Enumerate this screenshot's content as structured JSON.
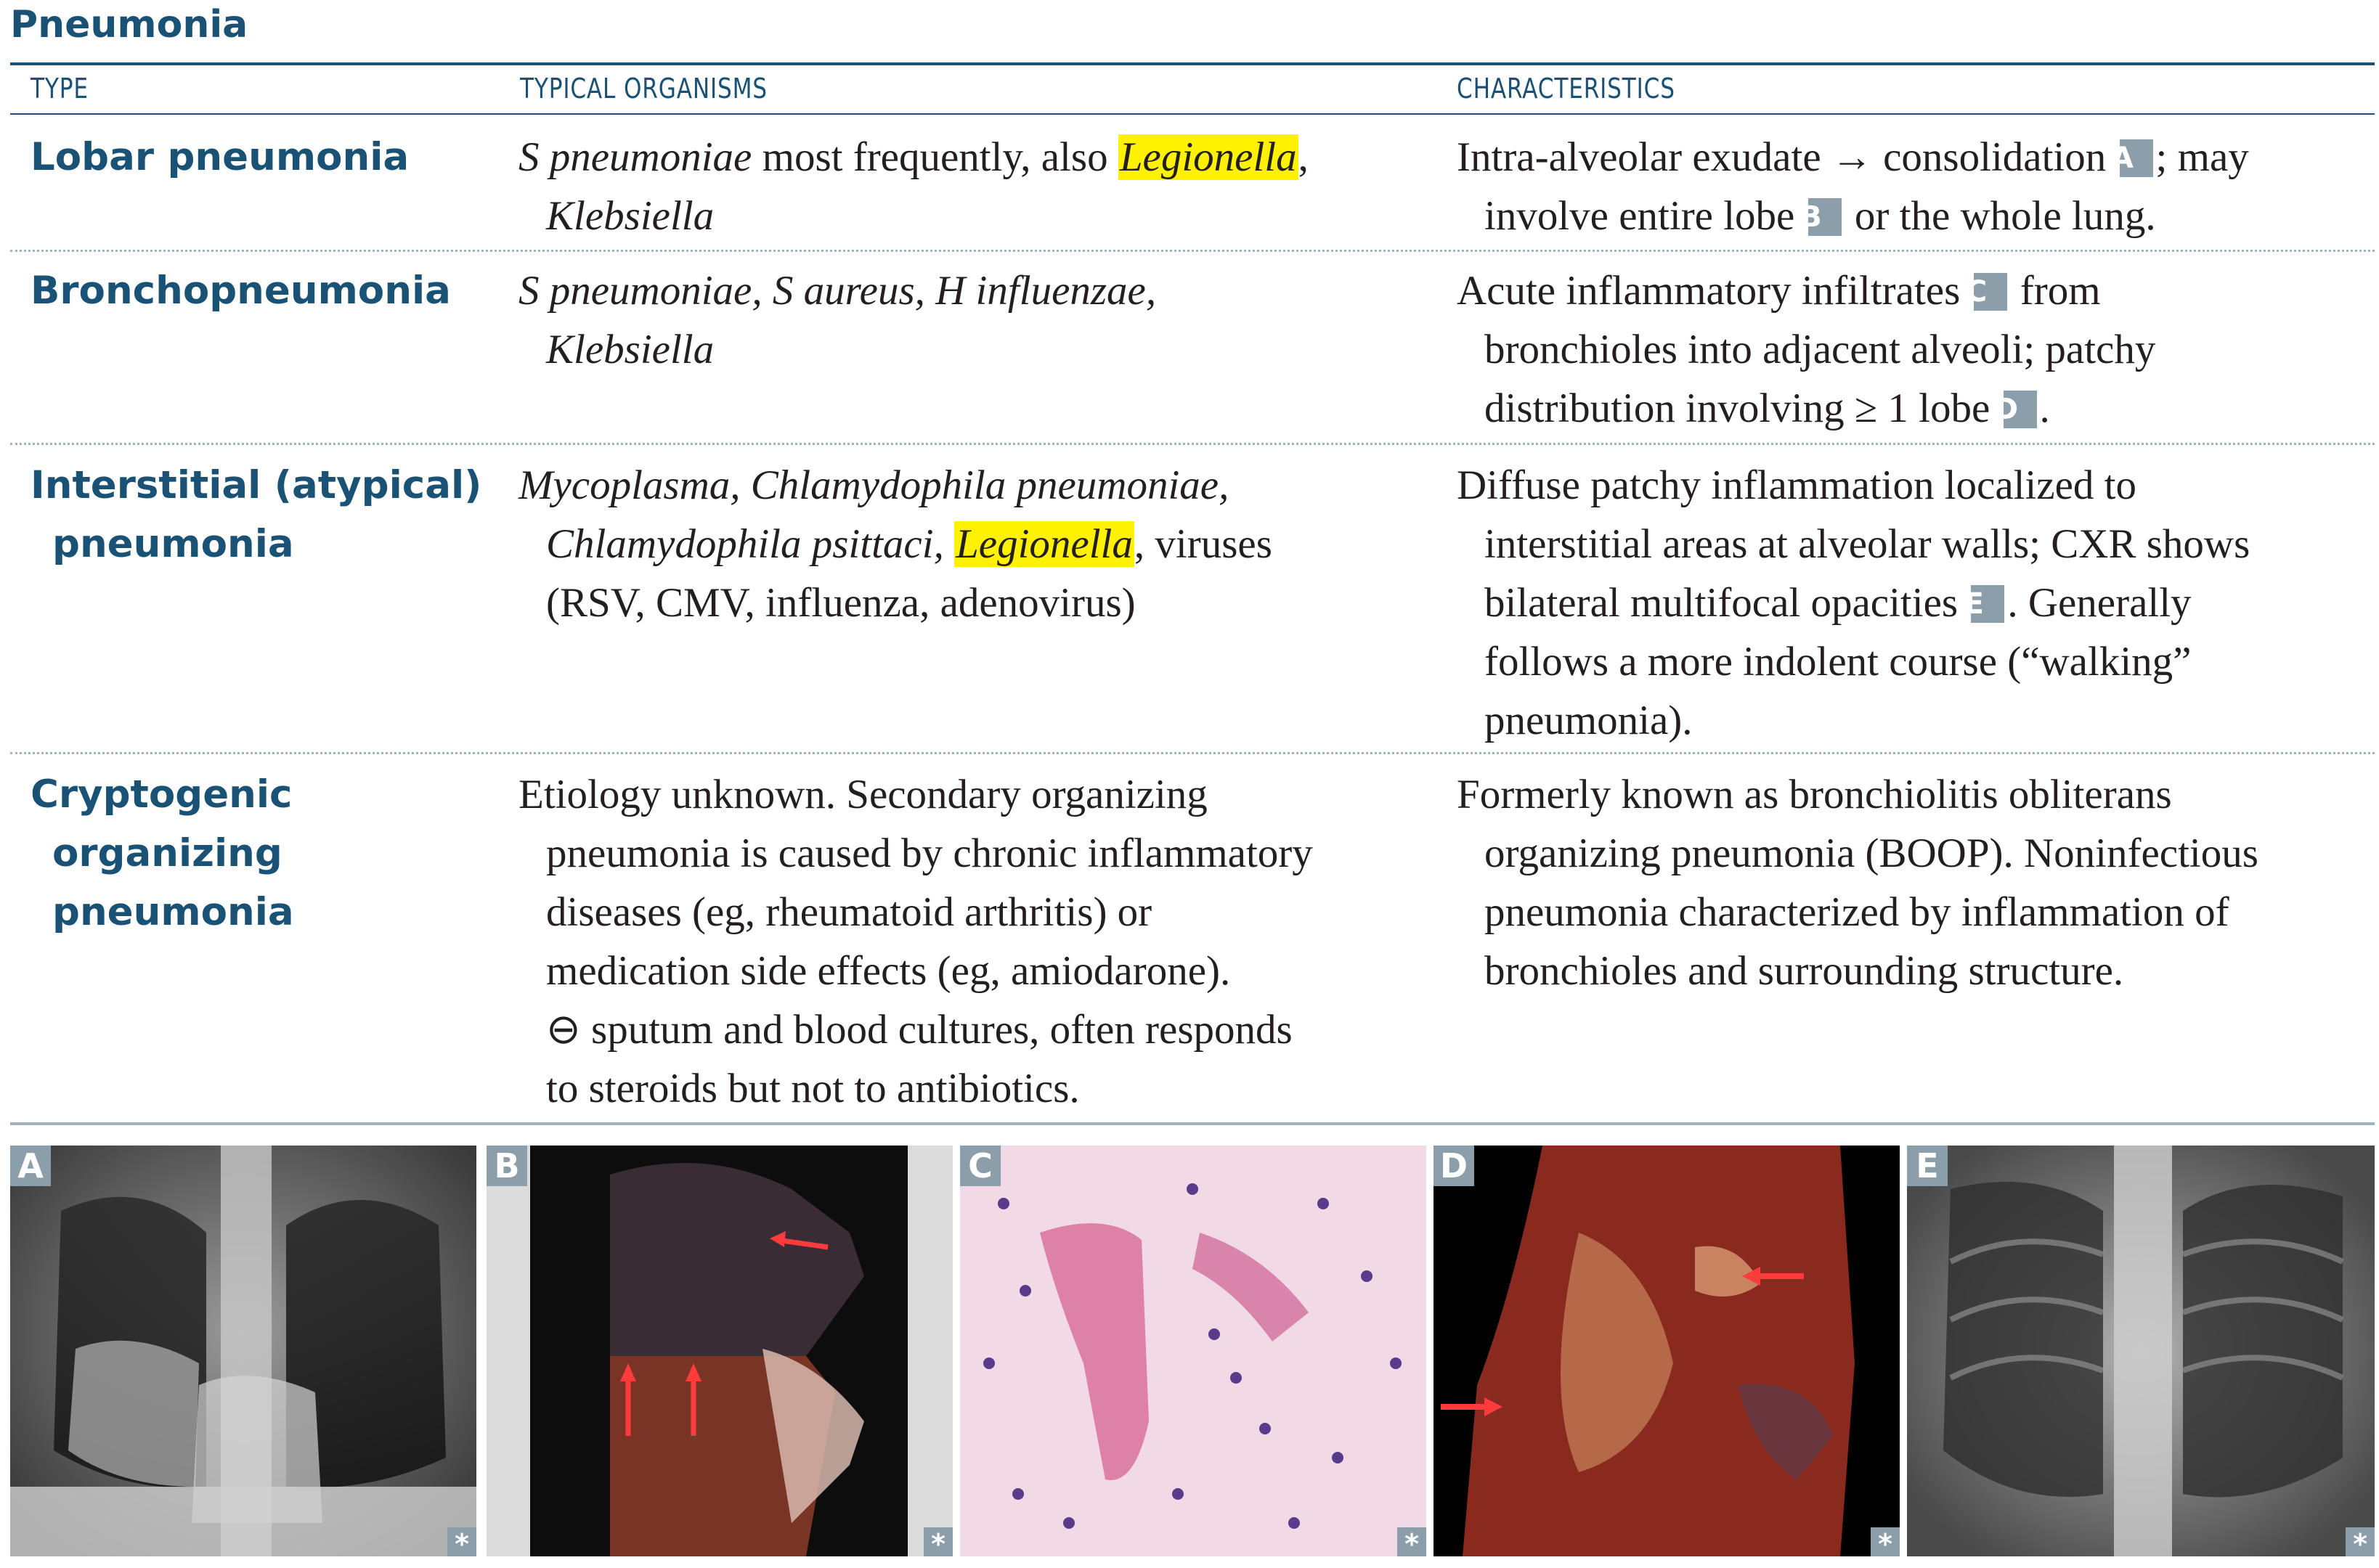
{
  "title": "Pneumonia",
  "headers": {
    "type": "TYPE",
    "organisms": "TYPICAL ORGANISMS",
    "characteristics": "CHARACTERISTICS"
  },
  "rows": [
    {
      "type_lines": [
        "Lobar pneumonia"
      ],
      "organisms": {
        "italic1": "S pneumoniae",
        "text1": " most frequently, also ",
        "highlight": "Legionella",
        "text2": ",",
        "italic2": "Klebsiella"
      },
      "characteristics": {
        "part1": "Intra-alveolar exudate ",
        "arrow": "→",
        "part2": " consolidation ",
        "label_a": "A",
        "part3": "; may",
        "part4": "involve entire lobe ",
        "label_b": "B",
        "part5": " or the whole lung."
      }
    },
    {
      "type_lines": [
        "Bronchopneumonia"
      ],
      "organisms": {
        "line1": "S pneumoniae, S aureus, H influenzae,",
        "line2": "Klebsiella"
      },
      "characteristics": {
        "part1": "Acute inflammatory infiltrates ",
        "label_c": "C",
        "part2": " from",
        "part3": "bronchioles into adjacent alveoli; patchy",
        "part4": "distribution involving ≥ 1 lobe ",
        "label_d": "D",
        "part5": "."
      }
    },
    {
      "type_lines": [
        "Interstitial (atypical)",
        "pneumonia"
      ],
      "organisms": {
        "line1": "Mycoplasma, Chlamydophila pneumoniae,",
        "italic2": "Chlamydophila psittaci, ",
        "highlight": "Legionella",
        "text2": ", viruses",
        "line3": "(RSV, CMV, influenza, adenovirus)"
      },
      "characteristics": {
        "part1": "Diffuse patchy inflammation localized to",
        "part2": "interstitial areas at alveolar walls; CXR shows",
        "part3": "bilateral multifocal opacities ",
        "label_e": "E",
        "part4": ". Generally",
        "part5": "follows a more indolent course (“walking”",
        "part6": "pneumonia)."
      }
    },
    {
      "type_lines": [
        "Cryptogenic",
        "organizing",
        "pneumonia"
      ],
      "organisms": {
        "line1": "Etiology unknown. Secondary organizing",
        "line2": "pneumonia is caused by chronic inflammatory",
        "line3": "diseases (eg, rheumatoid arthritis) or",
        "line4": "medication side effects (eg, amiodarone).",
        "line5": "⊖ sputum and blood cultures, often responds",
        "line6": "to steroids but not to antibiotics."
      },
      "characteristics": {
        "line1": "Formerly known as bronchiolitis obliterans",
        "line2": "organizing pneumonia (BOOP). Noninfectious",
        "line3": "pneumonia characterized by inflammation of",
        "line4": "bronchioles and surrounding structure."
      }
    }
  ],
  "images": [
    {
      "label": "A",
      "mark": "*"
    },
    {
      "label": "B",
      "mark": "*"
    },
    {
      "label": "C",
      "mark": "*"
    },
    {
      "label": "D",
      "mark": "*"
    },
    {
      "label": "E",
      "mark": "*"
    }
  ],
  "colors": {
    "heading": "#1a5276",
    "highlight": "#fff200",
    "label_bg": "#8c9ea9"
  }
}
